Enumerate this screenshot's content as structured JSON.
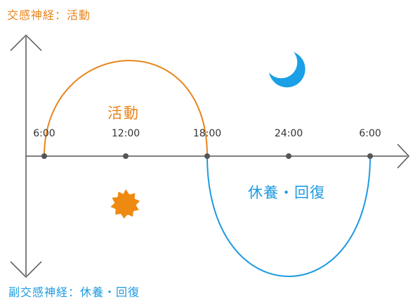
{
  "labels": {
    "sympathetic": "交感神経：活動",
    "parasympathetic": "副交感神経：休養・回復",
    "active": "活動",
    "rest": "休養・回復"
  },
  "ticks": [
    "6:00",
    "12:00",
    "18:00",
    "24:00",
    "6:00"
  ],
  "icons": {
    "sun": "sun-icon",
    "moon": "moon-icon"
  },
  "colors": {
    "sympathetic": "#e8851c",
    "parasympathetic": "#1e9be0",
    "sun": "#ee8a12",
    "moon": "#1aa0e6",
    "axis": "#555555"
  }
}
